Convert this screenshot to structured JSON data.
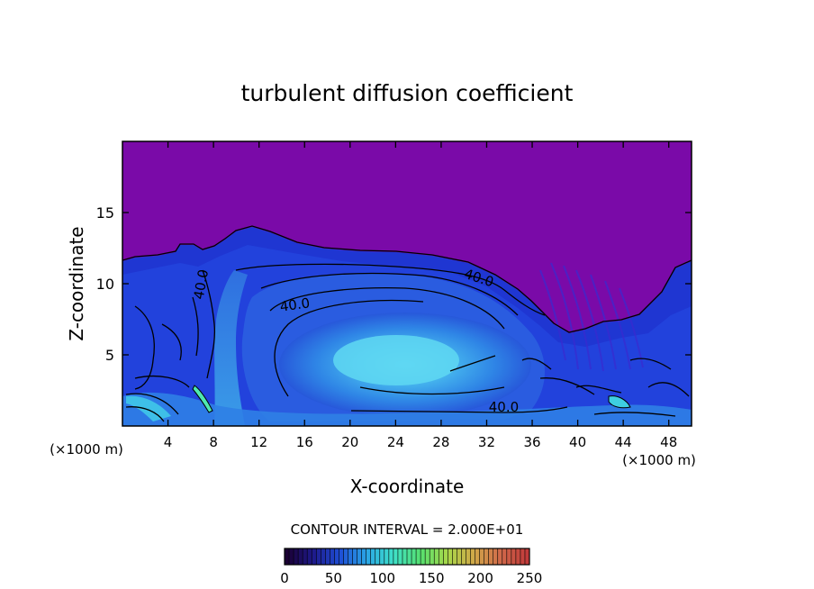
{
  "chart_data": {
    "type": "heatmap",
    "title": "turbulent diffusion coefficient",
    "xlabel": "X-coordinate",
    "ylabel": "Z-coordinate",
    "x_unit_left": "(×1000 m)",
    "x_unit_right": "(×1000 m)",
    "xlim": [
      0,
      50
    ],
    "ylim": [
      0,
      20
    ],
    "x_ticks": [
      4,
      8,
      12,
      16,
      20,
      24,
      28,
      32,
      36,
      40,
      44,
      48
    ],
    "y_ticks": [
      5,
      10,
      15
    ],
    "contour_interval_text": "CONTOUR INTERVAL = 2.000E+01",
    "contour_labels": [
      {
        "text": "40.0",
        "x": 7.3,
        "z": 9.9,
        "rotate": -80
      },
      {
        "text": "40.0",
        "x": 15.2,
        "z": 8.2,
        "rotate": -8
      },
      {
        "text": "40.0",
        "x": 31.2,
        "z": 10.1,
        "rotate": 18
      },
      {
        "text": "40.0",
        "x": 33.5,
        "z": 1.0,
        "rotate": 0
      }
    ],
    "colorbar": {
      "min": 0,
      "max": 250,
      "ticks": [
        0,
        50,
        100,
        150,
        200,
        250
      ],
      "colors": [
        "#1a0033",
        "#1e1a8c",
        "#1f4fd6",
        "#2aa6e6",
        "#3fe0c8",
        "#55e070",
        "#a8d84a",
        "#d0a848",
        "#d06a4a",
        "#c03a3a"
      ]
    },
    "colors": {
      "background_field": "#7a0aa8",
      "low": "#1e1ec8",
      "mid": "#2b6ee6",
      "high": "#49c6f0",
      "peak": "#4ee8b0",
      "contour": "#000000"
    }
  }
}
